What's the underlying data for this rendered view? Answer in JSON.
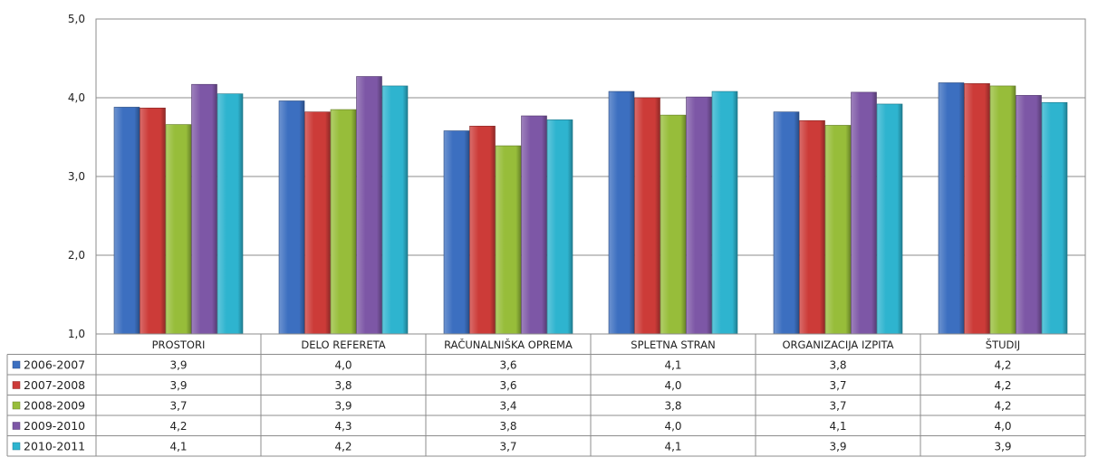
{
  "chart_data": {
    "type": "bar",
    "categories": [
      "PROSTORI",
      "DELO REFERETA",
      "RAČUNALNIŠKA OPREMA",
      "SPLETNA STRAN",
      "ORGANIZACIJA IZPITA",
      "ŠTUDIJ"
    ],
    "series": [
      {
        "name": "2006-2007",
        "color": "#3c6fc0",
        "values": [
          3.9,
          4.0,
          3.6,
          4.1,
          3.8,
          4.2
        ],
        "labels": [
          "3,9",
          "4,0",
          "3,6",
          "4,1",
          "3,8",
          "4,2"
        ]
      },
      {
        "name": "2007-2008",
        "color": "#cc3b38",
        "values": [
          3.9,
          3.8,
          3.6,
          4.0,
          3.7,
          4.2
        ],
        "labels": [
          "3,9",
          "3,8",
          "3,6",
          "4,0",
          "3,7",
          "4,2"
        ]
      },
      {
        "name": "2008-2009",
        "color": "#97bd3a",
        "values": [
          3.7,
          3.9,
          3.4,
          3.8,
          3.7,
          4.2
        ],
        "labels": [
          "3,7",
          "3,9",
          "3,4",
          "3,8",
          "3,7",
          "4,2"
        ]
      },
      {
        "name": "2009-2010",
        "color": "#7d57a6",
        "values": [
          4.2,
          4.3,
          3.8,
          4.0,
          4.1,
          4.0
        ],
        "labels": [
          "4,2",
          "4,3",
          "3,8",
          "4,0",
          "4,1",
          "4,0"
        ]
      },
      {
        "name": "2010-2011",
        "color": "#2eb4cf",
        "values": [
          4.1,
          4.2,
          3.7,
          4.1,
          3.9,
          3.9
        ],
        "labels": [
          "4,1",
          "4,2",
          "3,7",
          "4,1",
          "3,9",
          "3,9"
        ]
      }
    ],
    "bar_heights": [
      [
        3.88,
        3.96,
        3.58,
        4.08,
        3.82,
        4.19
      ],
      [
        3.87,
        3.82,
        3.64,
        4.0,
        3.71,
        4.18
      ],
      [
        3.66,
        3.85,
        3.39,
        3.78,
        3.65,
        4.15
      ],
      [
        4.17,
        4.27,
        3.77,
        4.01,
        4.07,
        4.03
      ],
      [
        4.05,
        4.15,
        3.72,
        4.08,
        3.92,
        3.94
      ]
    ],
    "ylim": [
      1.0,
      5.0
    ],
    "yticks": [
      "1,0",
      "2,0",
      "3,0",
      "4,0",
      "5,0"
    ],
    "grid": true,
    "legend": "data-table-left",
    "title": "",
    "xlabel": "",
    "ylabel": ""
  }
}
